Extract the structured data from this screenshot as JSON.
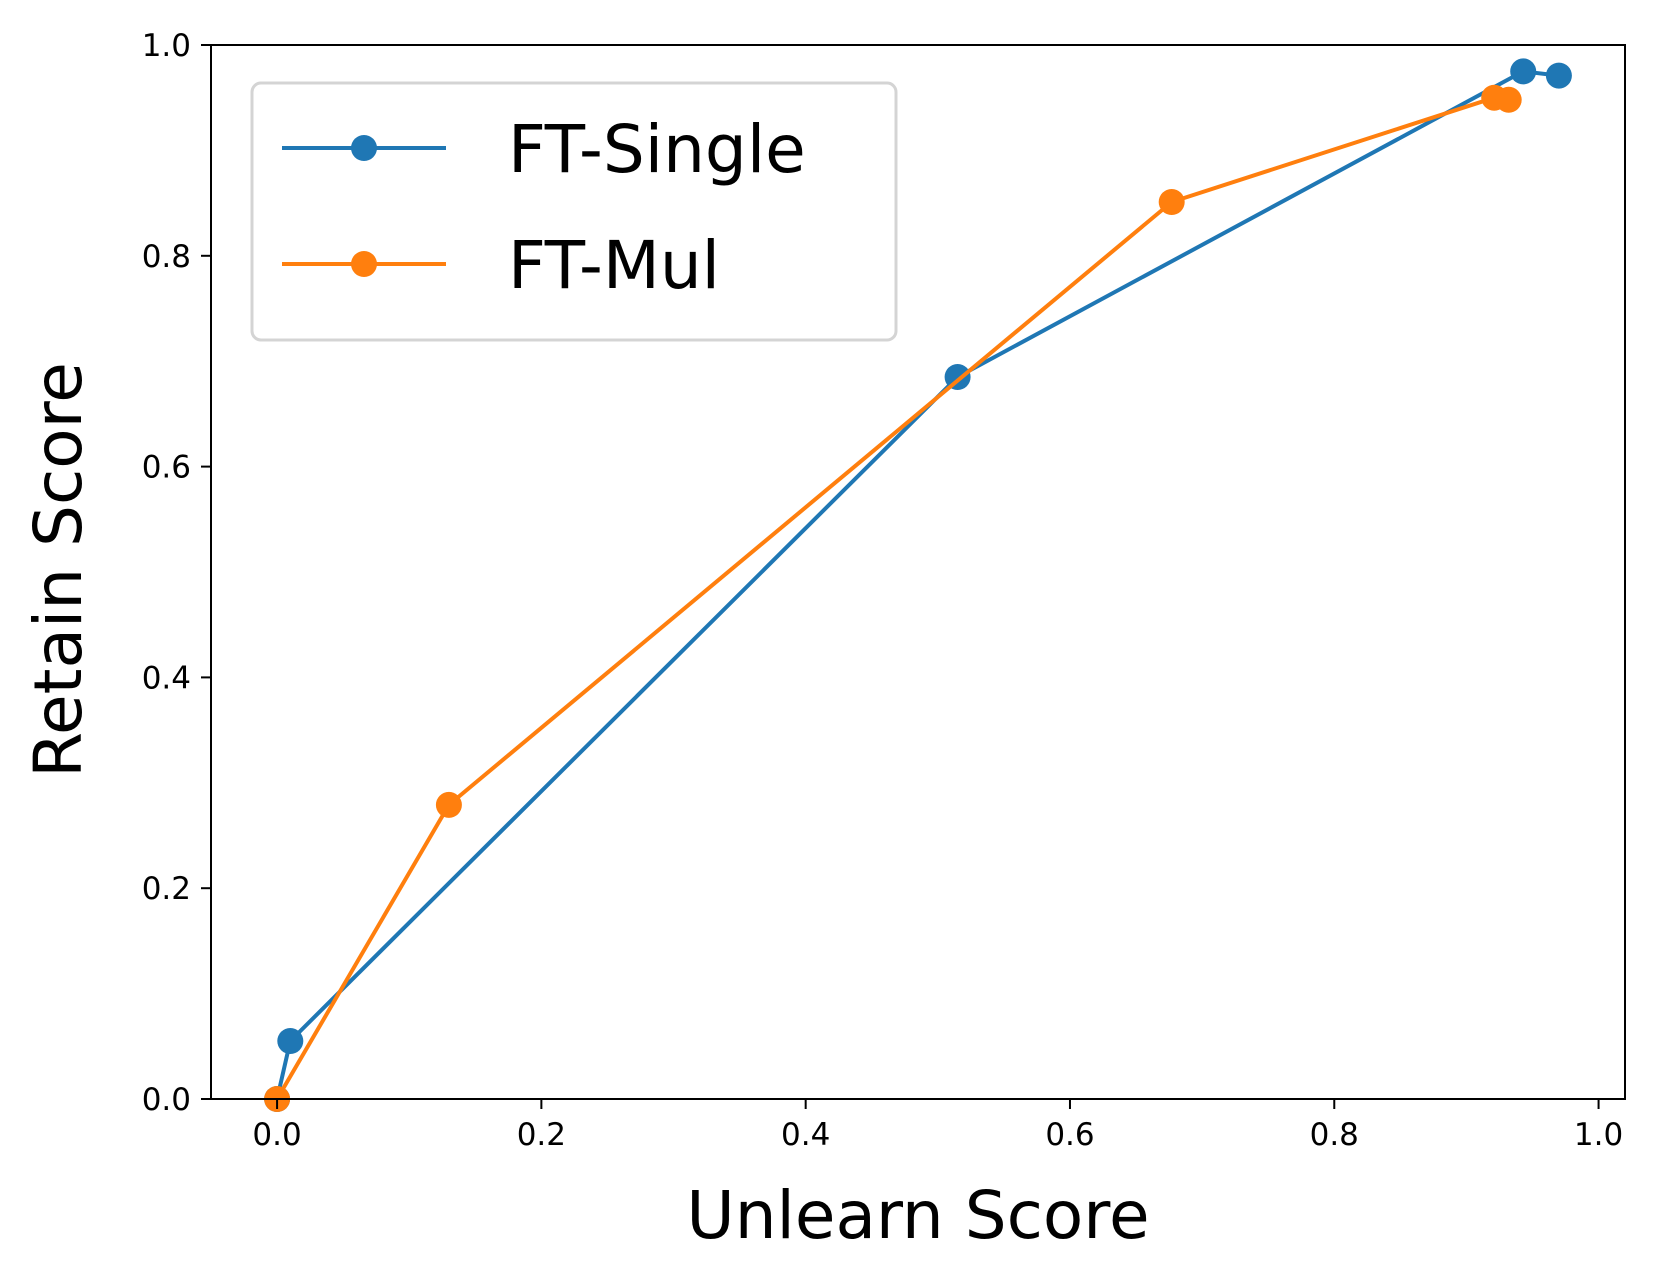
{
  "chart_data": {
    "type": "line",
    "title": "",
    "xlabel": "Unlearn Score",
    "ylabel": "Retain Score",
    "xlim": [
      -0.05,
      1.02
    ],
    "ylim": [
      0.0,
      1.0
    ],
    "xticks": [
      0.0,
      0.2,
      0.4,
      0.6,
      0.8,
      1.0
    ],
    "xtick_labels": [
      "0.0",
      "0.2",
      "0.4",
      "0.6",
      "0.8",
      "1.0"
    ],
    "yticks": [
      0.0,
      0.2,
      0.4,
      0.6,
      0.8,
      1.0
    ],
    "ytick_labels": [
      "0.0",
      "0.2",
      "0.4",
      "0.6",
      "0.8",
      "1.0"
    ],
    "grid": false,
    "legend_position": "upper-left",
    "series": [
      {
        "name": "FT-Single",
        "color": "#1f77b4",
        "marker": "circle",
        "x": [
          0.0,
          0.01,
          0.515,
          0.943,
          0.97
        ],
        "y": [
          0.0,
          0.055,
          0.685,
          0.975,
          0.971
        ]
      },
      {
        "name": "FT-Mul",
        "color": "#ff7f0e",
        "marker": "circle",
        "x": [
          0.0,
          0.13,
          0.677,
          0.921,
          0.932
        ],
        "y": [
          0.0,
          0.279,
          0.851,
          0.95,
          0.948
        ]
      }
    ]
  }
}
